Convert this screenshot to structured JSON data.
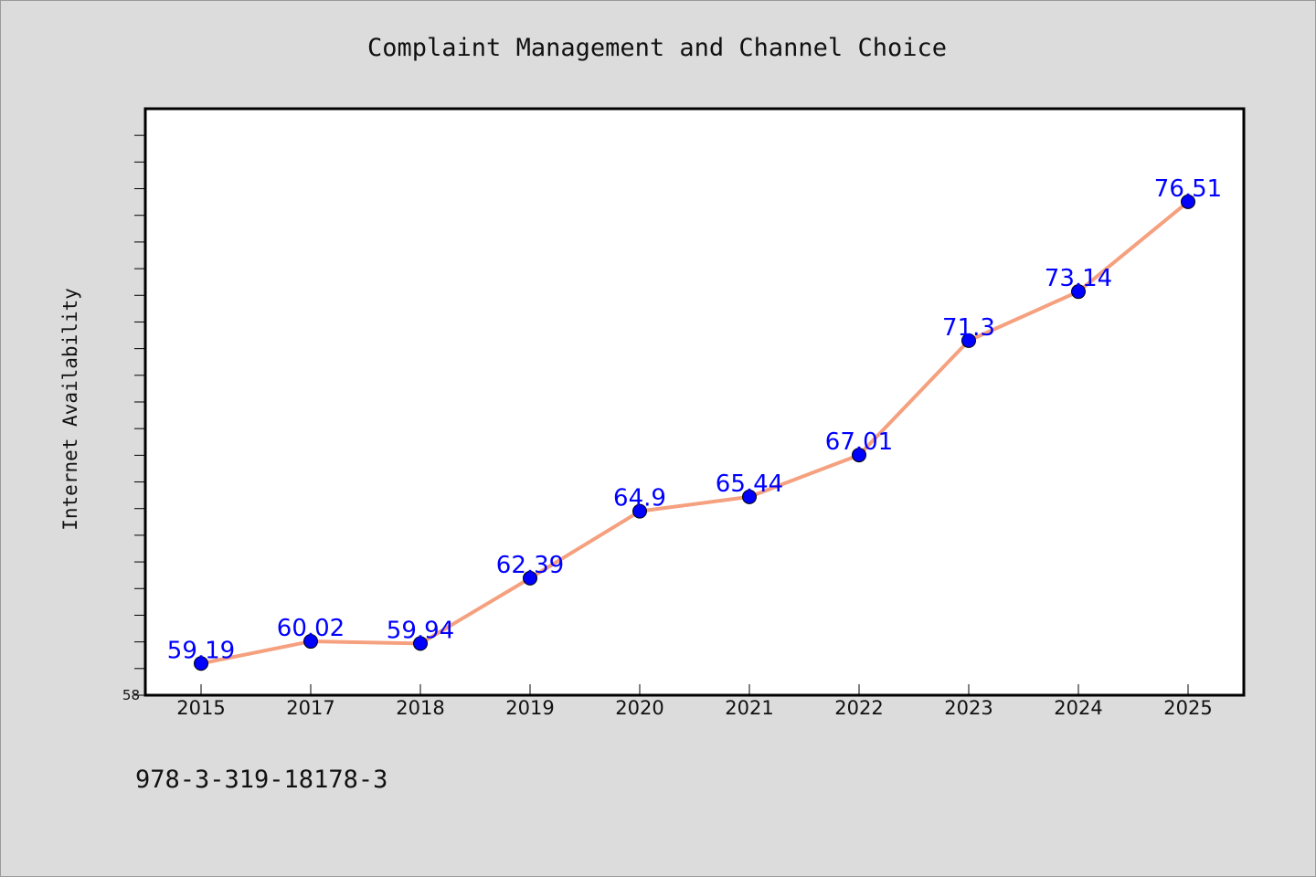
{
  "chart_data": {
    "type": "line",
    "title": "Complaint Management and Channel Choice",
    "ylabel": "Internet Availability",
    "xlabel": "",
    "categories": [
      "2015",
      "2017",
      "2018",
      "2019",
      "2020",
      "2021",
      "2022",
      "2023",
      "2024",
      "2025"
    ],
    "series": [
      {
        "values": [
          59.19,
          60.02,
          59.94,
          62.39,
          64.9,
          65.44,
          67.01,
          71.3,
          73.14,
          76.51
        ],
        "labels": [
          "59.19",
          "60.02",
          "59.94",
          "62.39",
          "64.9",
          "65.44",
          "67.01",
          "71.3",
          "73.14",
          "76.51"
        ],
        "line_color": "#f5a07e",
        "marker_color": "#0000ff"
      }
    ],
    "ylim": [
      58,
      80
    ],
    "ytick_labels_shown": [
      "58"
    ],
    "grid": false,
    "legend": "none"
  },
  "footer": {
    "isbn": "978-3-319-18178-3"
  }
}
